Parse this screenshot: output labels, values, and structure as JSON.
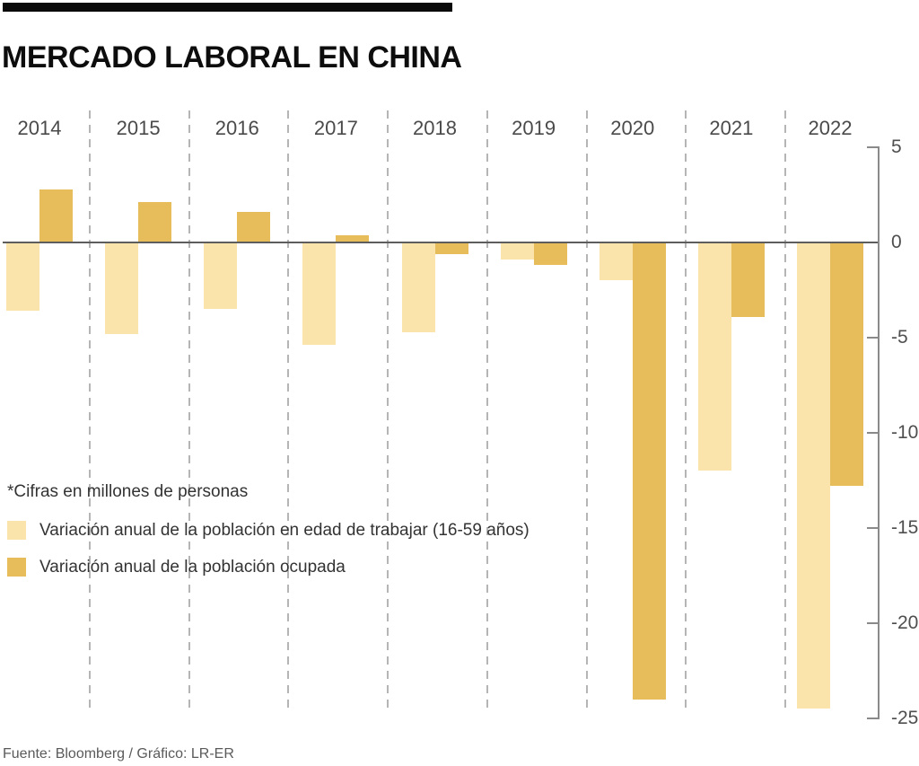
{
  "header": {
    "title": "MERCADO LABORAL EN CHINA"
  },
  "chart_data": {
    "type": "bar",
    "title": "MERCADO LABORAL EN CHINA",
    "unit": "millones de personas",
    "categories": [
      "2014",
      "2015",
      "2016",
      "2017",
      "2018",
      "2019",
      "2020",
      "2021",
      "2022"
    ],
    "series": [
      {
        "id": "working-age",
        "name": "Variación anual de la población en edad de trabajar (16-59 años)",
        "color": "#FBE4AC",
        "values": [
          -3.6,
          -4.8,
          -3.5,
          -5.4,
          -4.7,
          -0.9,
          -2.0,
          -12.0,
          -24.5
        ]
      },
      {
        "id": "employed",
        "name": "Variación anual de la población ocupada",
        "color": "#E7BD5B",
        "values": [
          2.8,
          2.1,
          1.6,
          0.4,
          -0.6,
          -1.2,
          -24.0,
          -3.9,
          -12.8
        ]
      }
    ],
    "ylim": [
      -25,
      5
    ],
    "yticks": [
      5,
      0,
      -5,
      -10,
      -15,
      -20,
      -25
    ],
    "grid": "dashed vertical separators between year groups",
    "legend_position": "inside-left"
  },
  "legend": {
    "note": "*Cifras en millones de personas",
    "items": [
      {
        "label": "Variación anual de la población en edad de trabajar (16-59 años)",
        "color": "#FBE4AC"
      },
      {
        "label": "Variación anual de la población ocupada",
        "color": "#E7BD5B"
      }
    ]
  },
  "footer": {
    "source": "Fuente: Bloomberg  / Gráfico: LR-ER"
  },
  "colors": {
    "accent_light": "#FBE4AC",
    "accent_dark": "#E7BD5B",
    "zero_line": "#5d5d5d",
    "axis": "#8a8a8a",
    "separator": "#b5b5b5"
  }
}
